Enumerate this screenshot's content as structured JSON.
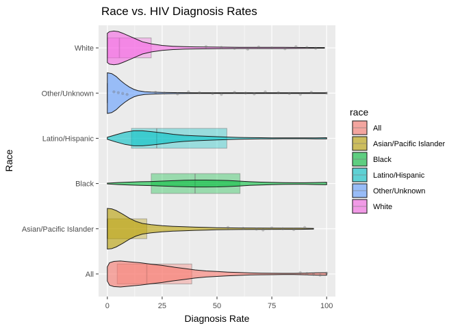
{
  "chart_data": {
    "type": "violin",
    "title": "Race vs. HIV Diagnosis Rates",
    "xlabel": "Diagnosis Rate",
    "ylabel": "Race",
    "xlim": [
      -4,
      104
    ],
    "x_ticks": [
      0,
      25,
      50,
      75,
      100
    ],
    "categories": [
      "All",
      "Asian/Pacific Islander",
      "Black",
      "Latino/Hispanic",
      "Other/Unknown",
      "White"
    ],
    "orientation": "horizontal",
    "grid": true,
    "legend": {
      "title": "race",
      "placement": "right",
      "entries": [
        "All",
        "Asian/Pacific Islander",
        "Black",
        "Latino/Hispanic",
        "Other/Unknown",
        "White"
      ]
    },
    "colors": {
      "All": "#F8766D",
      "Asian/Pacific Islander": "#B79F00",
      "Black": "#00BA38",
      "Latino/Hispanic": "#00BFC4",
      "Other/Unknown": "#619CFF",
      "White": "#F564E3"
    },
    "series": [
      {
        "name": "All",
        "box": {
          "q1": 4.5,
          "median": 18,
          "q3": 38.5
        },
        "density": [
          [
            0,
            0.35
          ],
          [
            1,
            0.55
          ],
          [
            3,
            0.62
          ],
          [
            6,
            0.64
          ],
          [
            10,
            0.6
          ],
          [
            15,
            0.55
          ],
          [
            20,
            0.48
          ],
          [
            25,
            0.42
          ],
          [
            30,
            0.34
          ],
          [
            35,
            0.27
          ],
          [
            40,
            0.2
          ],
          [
            45,
            0.15
          ],
          [
            50,
            0.12
          ],
          [
            55,
            0.09
          ],
          [
            60,
            0.07
          ],
          [
            65,
            0.05
          ],
          [
            70,
            0.04
          ],
          [
            75,
            0.035
          ],
          [
            80,
            0.03
          ],
          [
            85,
            0.03
          ],
          [
            90,
            0.04
          ],
          [
            95,
            0.055
          ],
          [
            98,
            0.06
          ],
          [
            100,
            0.06
          ]
        ],
        "points": [
          88,
          91,
          94,
          97,
          100
        ]
      },
      {
        "name": "Asian/Pacific Islander",
        "box": {
          "q1": 0,
          "median": 0,
          "q3": 18
        },
        "density": [
          [
            0,
            1.0
          ],
          [
            2,
            0.98
          ],
          [
            4,
            0.9
          ],
          [
            7,
            0.72
          ],
          [
            10,
            0.52
          ],
          [
            13,
            0.36
          ],
          [
            16,
            0.26
          ],
          [
            20,
            0.2
          ],
          [
            25,
            0.15
          ],
          [
            30,
            0.12
          ],
          [
            35,
            0.1
          ],
          [
            40,
            0.08
          ],
          [
            45,
            0.065
          ],
          [
            50,
            0.05
          ],
          [
            60,
            0.04
          ],
          [
            70,
            0.035
          ],
          [
            80,
            0.03
          ],
          [
            88,
            0.03
          ],
          [
            94,
            0.02
          ]
        ],
        "points": [
          55,
          62,
          68,
          71,
          75,
          80,
          85,
          90
        ]
      },
      {
        "name": "Black",
        "box": {
          "q1": 20,
          "median": 40,
          "q3": 60.5
        },
        "density": [
          [
            0,
            0.02
          ],
          [
            5,
            0.05
          ],
          [
            10,
            0.07
          ],
          [
            15,
            0.09
          ],
          [
            20,
            0.1
          ],
          [
            25,
            0.12
          ],
          [
            30,
            0.14
          ],
          [
            35,
            0.16
          ],
          [
            40,
            0.17
          ],
          [
            45,
            0.17
          ],
          [
            50,
            0.165
          ],
          [
            55,
            0.15
          ],
          [
            60,
            0.12
          ],
          [
            65,
            0.09
          ],
          [
            70,
            0.07
          ],
          [
            75,
            0.055
          ],
          [
            80,
            0.045
          ],
          [
            85,
            0.04
          ],
          [
            90,
            0.04
          ],
          [
            95,
            0.05
          ],
          [
            100,
            0.06
          ]
        ],
        "points": []
      },
      {
        "name": "Latino/Hispanic",
        "box": {
          "q1": 11,
          "median": 22.5,
          "q3": 54.5
        },
        "density": [
          [
            0,
            0.05
          ],
          [
            4,
            0.18
          ],
          [
            8,
            0.3
          ],
          [
            12,
            0.37
          ],
          [
            16,
            0.37
          ],
          [
            20,
            0.33
          ],
          [
            25,
            0.27
          ],
          [
            30,
            0.2
          ],
          [
            35,
            0.15
          ],
          [
            40,
            0.12
          ],
          [
            45,
            0.1
          ],
          [
            50,
            0.08
          ],
          [
            55,
            0.06
          ],
          [
            60,
            0.045
          ],
          [
            65,
            0.035
          ],
          [
            70,
            0.03
          ],
          [
            75,
            0.025
          ],
          [
            80,
            0.02
          ],
          [
            85,
            0.02
          ],
          [
            90,
            0.02
          ],
          [
            95,
            0.025
          ],
          [
            100,
            0.03
          ]
        ],
        "points": []
      },
      {
        "name": "Other/Unknown",
        "box": {
          "q1": 0,
          "median": 0,
          "q3": 0
        },
        "density": [
          [
            0,
            1.0
          ],
          [
            2,
            0.96
          ],
          [
            4,
            0.82
          ],
          [
            6,
            0.62
          ],
          [
            8,
            0.45
          ],
          [
            10,
            0.3
          ],
          [
            12,
            0.19
          ],
          [
            14,
            0.12
          ],
          [
            17,
            0.07
          ],
          [
            20,
            0.05
          ],
          [
            25,
            0.035
          ],
          [
            30,
            0.025
          ],
          [
            40,
            0.02
          ],
          [
            50,
            0.02
          ],
          [
            60,
            0.015
          ],
          [
            70,
            0.015
          ],
          [
            80,
            0.015
          ],
          [
            90,
            0.015
          ],
          [
            100,
            0.015
          ]
        ],
        "points": [
          3,
          5,
          7,
          9,
          22,
          26,
          32,
          37,
          42,
          48,
          52,
          58,
          63,
          67,
          72,
          78,
          83,
          88,
          93,
          100
        ]
      },
      {
        "name": "White",
        "box": {
          "q1": 0,
          "median": 5.5,
          "q3": 20
        },
        "density": [
          [
            0,
            0.72
          ],
          [
            1,
            0.8
          ],
          [
            3,
            0.83
          ],
          [
            5,
            0.8
          ],
          [
            7,
            0.72
          ],
          [
            10,
            0.58
          ],
          [
            13,
            0.44
          ],
          [
            16,
            0.3
          ],
          [
            20,
            0.2
          ],
          [
            25,
            0.12
          ],
          [
            30,
            0.08
          ],
          [
            35,
            0.06
          ],
          [
            40,
            0.05
          ],
          [
            50,
            0.04
          ],
          [
            60,
            0.03
          ],
          [
            70,
            0.03
          ],
          [
            80,
            0.03
          ],
          [
            90,
            0.02
          ],
          [
            99,
            0.015
          ]
        ],
        "points": [
          45,
          52,
          58,
          64,
          69,
          75,
          81,
          86,
          91,
          95
        ]
      }
    ]
  }
}
